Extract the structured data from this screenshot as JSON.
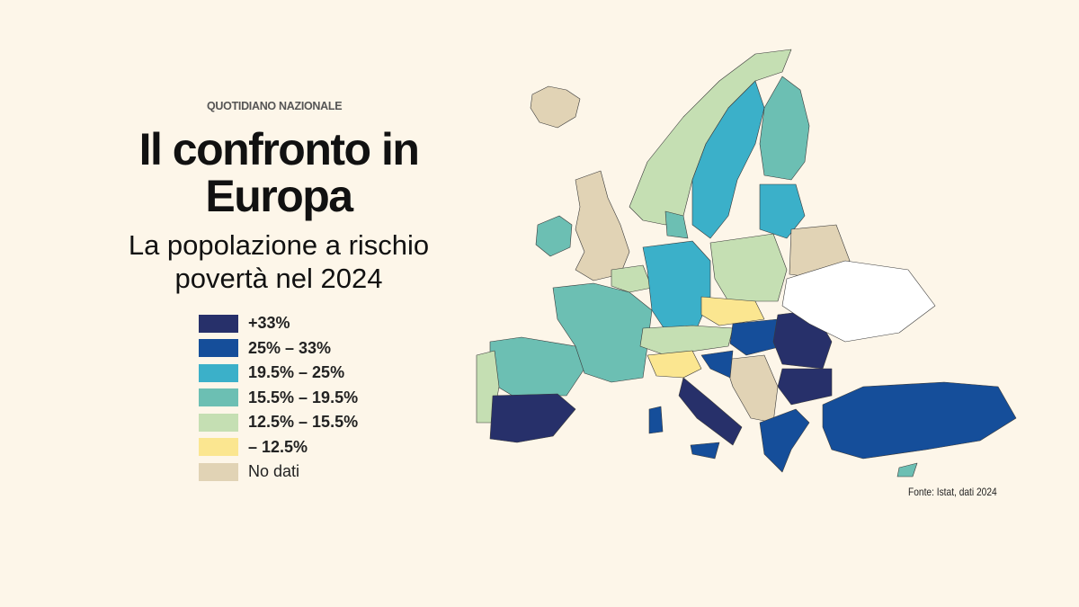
{
  "header": {
    "brand": "QUOTIDIANO NAZIONALE",
    "title": "Il confronto in Europa",
    "subtitle": "La popolazione a rischio povertà nel 2024"
  },
  "legend": [
    {
      "label": "+33%",
      "color": "#27306a"
    },
    {
      "label": "25% – 33%",
      "color": "#154e9a"
    },
    {
      "label": "19.5% – 25%",
      "color": "#3bb0c9"
    },
    {
      "label": "15.5% – 19.5%",
      "color": "#6cbfb3"
    },
    {
      "label": "12.5% – 15.5%",
      "color": "#c5dfb3"
    },
    {
      "label": "– 12.5%",
      "color": "#fbe690"
    },
    {
      "label": "No dati",
      "color": "#e1d3b5"
    }
  ],
  "source": "Fonte: Istat, dati 2024",
  "map": {
    "outside_color": "#ffffff",
    "regions": [
      {
        "name": "iceland",
        "cls": 6
      },
      {
        "name": "ireland",
        "cls": 3
      },
      {
        "name": "united-kingdom",
        "cls": 6
      },
      {
        "name": "norway",
        "cls": 4
      },
      {
        "name": "sweden",
        "cls": 2
      },
      {
        "name": "finland",
        "cls": 3
      },
      {
        "name": "baltics",
        "cls": 2
      },
      {
        "name": "iberia-north",
        "cls": 3
      },
      {
        "name": "portugal",
        "cls": 4
      },
      {
        "name": "spain-south",
        "cls": 0
      },
      {
        "name": "france",
        "cls": 3
      },
      {
        "name": "benelux",
        "cls": 4
      },
      {
        "name": "germany",
        "cls": 2
      },
      {
        "name": "denmark",
        "cls": 3
      },
      {
        "name": "poland",
        "cls": 4
      },
      {
        "name": "czechia-slovakia",
        "cls": 5
      },
      {
        "name": "austria-switzerland",
        "cls": 4
      },
      {
        "name": "italy-north",
        "cls": 5
      },
      {
        "name": "italy-south",
        "cls": 0
      },
      {
        "name": "sardinia",
        "cls": 1
      },
      {
        "name": "sicily",
        "cls": 1
      },
      {
        "name": "hungary",
        "cls": 1
      },
      {
        "name": "romania",
        "cls": 0
      },
      {
        "name": "bulgaria",
        "cls": 0
      },
      {
        "name": "west-balkans",
        "cls": 6
      },
      {
        "name": "croatia",
        "cls": 1
      },
      {
        "name": "greece",
        "cls": 1
      },
      {
        "name": "turkey",
        "cls": 1
      },
      {
        "name": "belarus",
        "cls": 6
      },
      {
        "name": "ukraine",
        "cls": -1
      },
      {
        "name": "cyprus",
        "cls": 3
      }
    ]
  }
}
